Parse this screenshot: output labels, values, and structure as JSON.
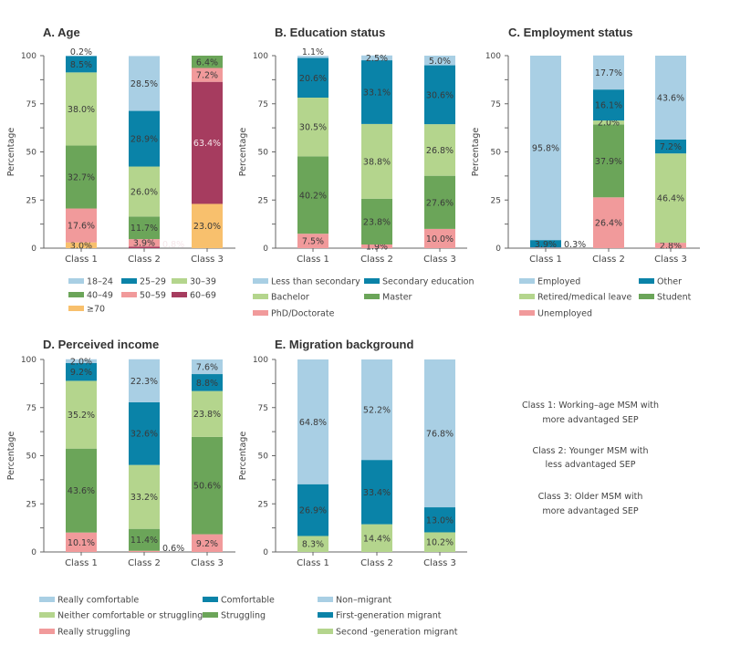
{
  "y_axis_label": "Percentage",
  "notes": [
    [
      "Class 1: Working–age MSM with",
      "more advantaged SEP"
    ],
    [
      "Class 2: Younger MSM with",
      "less advantaged SEP"
    ],
    [
      "Class 3: Older MSM with",
      "more advantaged SEP"
    ]
  ],
  "colors": {
    "light_blue": "#a9cfe4",
    "teal": "#0a83a8",
    "light_green": "#b4d58d",
    "green": "#6ba559",
    "pink": "#f19a9b",
    "maroon": "#a63c5f",
    "orange": "#f8c06d"
  },
  "chart_data": [
    {
      "type": "bar",
      "stacked": true,
      "title": "A. Age",
      "ylabel": "Percentage",
      "ylim": [
        0,
        100
      ],
      "yticks": [
        0,
        25,
        50,
        75,
        100
      ],
      "categories": [
        "Class 1",
        "Class 2",
        "Class 3"
      ],
      "legend_columns": 3,
      "series": [
        {
          "name": "18–24",
          "color": "#a9cfe4",
          "values": [
            0.2,
            28.5,
            0
          ]
        },
        {
          "name": "25–29",
          "color": "#0a83a8",
          "values": [
            8.5,
            28.9,
            0
          ]
        },
        {
          "name": "30–39",
          "color": "#b4d58d",
          "values": [
            38.0,
            26.0,
            0
          ]
        },
        {
          "name": "40–49",
          "color": "#6ba559",
          "values": [
            32.7,
            11.7,
            6.4
          ]
        },
        {
          "name": "50–59",
          "color": "#f19a9b",
          "values": [
            17.6,
            3.9,
            7.2
          ]
        },
        {
          "name": "60–69",
          "color": "#a63c5f",
          "values": [
            0,
            0.8,
            63.4
          ]
        },
        {
          "name": "≥70",
          "color": "#f8c06d",
          "values": [
            3.0,
            0,
            23.0
          ]
        }
      ]
    },
    {
      "type": "bar",
      "stacked": true,
      "title": "B. Education status",
      "ylabel": "Percentage",
      "ylim": [
        0,
        100
      ],
      "yticks": [
        0,
        25,
        50,
        75,
        100
      ],
      "categories": [
        "Class 1",
        "Class 2",
        "Class 3"
      ],
      "legend_columns": 2,
      "series": [
        {
          "name": "Less than secondary",
          "color": "#a9cfe4",
          "values": [
            1.1,
            2.5,
            5.0
          ]
        },
        {
          "name": "Secondary education",
          "color": "#0a83a8",
          "values": [
            20.6,
            33.1,
            30.6
          ]
        },
        {
          "name": "Bachelor",
          "color": "#b4d58d",
          "values": [
            30.5,
            38.8,
            26.8
          ]
        },
        {
          "name": "Master",
          "color": "#6ba559",
          "values": [
            40.2,
            23.8,
            27.6
          ]
        },
        {
          "name": "PhD/Doctorate",
          "color": "#f19a9b",
          "values": [
            7.5,
            1.9,
            10.0
          ]
        }
      ]
    },
    {
      "type": "bar",
      "stacked": true,
      "title": "C. Employment status",
      "ylabel": "Percentage",
      "ylim": [
        0,
        100
      ],
      "yticks": [
        0,
        25,
        50,
        75,
        100
      ],
      "categories": [
        "Class 1",
        "Class 2",
        "Class 3"
      ],
      "legend_columns": 2,
      "series": [
        {
          "name": "Employed",
          "color": "#a9cfe4",
          "values": [
            95.8,
            17.7,
            43.6
          ]
        },
        {
          "name": "Other",
          "color": "#0a83a8",
          "values": [
            3.9,
            16.1,
            7.2
          ]
        },
        {
          "name": "Retired/medical leave",
          "color": "#b4d58d",
          "values": [
            0,
            2.0,
            46.4
          ]
        },
        {
          "name": "Student",
          "color": "#6ba559",
          "values": [
            0,
            37.9,
            0
          ]
        },
        {
          "name": "Unemployed",
          "color": "#f19a9b",
          "values": [
            0.3,
            26.4,
            2.8
          ]
        }
      ]
    },
    {
      "type": "bar",
      "stacked": true,
      "title": "D. Perceived income",
      "ylabel": "Percentage",
      "ylim": [
        0,
        100
      ],
      "yticks": [
        0,
        25,
        50,
        75,
        100
      ],
      "categories": [
        "Class 1",
        "Class 2",
        "Class 3"
      ],
      "legend_columns": 2,
      "series": [
        {
          "name": "Really comfortable",
          "color": "#a9cfe4",
          "values": [
            2.0,
            22.3,
            7.6
          ]
        },
        {
          "name": "Comfortable",
          "color": "#0a83a8",
          "values": [
            9.2,
            32.6,
            8.8
          ]
        },
        {
          "name": "Neither comfortable or struggling",
          "color": "#b4d58d",
          "values": [
            35.2,
            33.2,
            23.8
          ]
        },
        {
          "name": "Struggling",
          "color": "#6ba559",
          "values": [
            43.6,
            11.4,
            50.6
          ]
        },
        {
          "name": "Really struggling",
          "color": "#f19a9b",
          "values": [
            10.1,
            0.6,
            9.2
          ]
        }
      ]
    },
    {
      "type": "bar",
      "stacked": true,
      "title": "E. Migration background",
      "ylabel": "Percentage",
      "ylim": [
        0,
        100
      ],
      "yticks": [
        0,
        25,
        50,
        75,
        100
      ],
      "categories": [
        "Class 1",
        "Class 2",
        "Class 3"
      ],
      "legend_columns": 1,
      "series": [
        {
          "name": "Non–migrant",
          "color": "#a9cfe4",
          "values": [
            64.8,
            52.2,
            76.8
          ]
        },
        {
          "name": "First-generation migrant",
          "color": "#0a83a8",
          "values": [
            26.9,
            33.4,
            13.0
          ]
        },
        {
          "name": "Second -generation migrant",
          "color": "#b4d58d",
          "values": [
            8.3,
            14.4,
            10.2
          ]
        }
      ]
    }
  ]
}
